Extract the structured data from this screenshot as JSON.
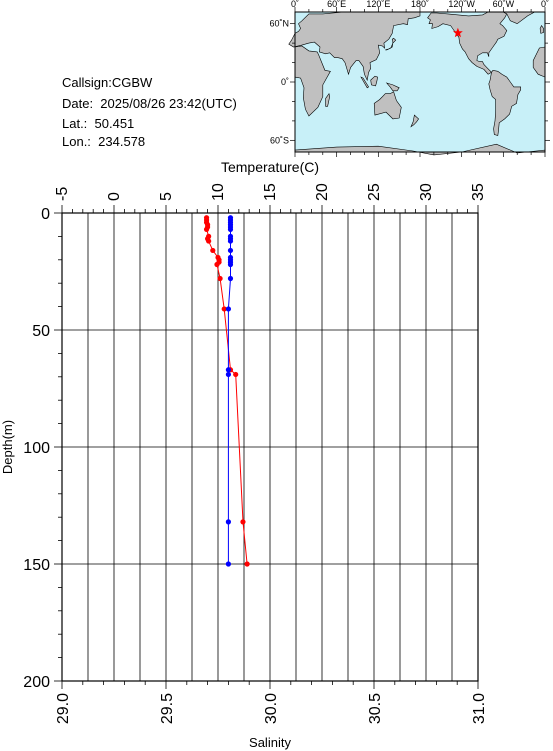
{
  "header": {
    "callsign": "Callsign:CGBW",
    "date": "Date:  2025/08/26 23:42(UTC)",
    "lat": "Lat.:  50.451",
    "lon": "Lon.:  234.578"
  },
  "map": {
    "top_labels": [
      "0˚",
      "60˚E",
      "120˚E",
      "180˚",
      "120˚W",
      "60˚W",
      "0˚"
    ],
    "left_labels": [
      "60˚N",
      "0˚",
      "60˚S"
    ],
    "station_lat": 50.451,
    "station_lon": 234.578,
    "colors": {
      "ocean": "#c8f0f8",
      "land": "#c0c0c0",
      "marker": "#ff0000"
    }
  },
  "chart_data": {
    "type": "line",
    "top_axis": {
      "label": "Temperature(C)",
      "range": [
        -5,
        35
      ],
      "ticks": [
        "-5",
        "0",
        "5",
        "10",
        "15",
        "20",
        "25",
        "30",
        "35"
      ]
    },
    "bottom_axis": {
      "label": "Salinity",
      "range": [
        29.0,
        31.0
      ],
      "ticks": [
        "29.0",
        "29.5",
        "30.0",
        "30.5",
        "31.0"
      ]
    },
    "left_axis": {
      "label": "Depth(m)",
      "range": [
        0,
        200
      ],
      "ticks": [
        "0",
        "50",
        "100",
        "150",
        "200"
      ]
    },
    "grid": true,
    "series": [
      {
        "axis": "temperature",
        "color": "#ff0000",
        "points": [
          [
            8.9,
            2
          ],
          [
            8.9,
            3
          ],
          [
            8.9,
            4
          ],
          [
            9.0,
            5
          ],
          [
            9.0,
            6
          ],
          [
            8.9,
            7
          ],
          [
            9.1,
            10
          ],
          [
            9.0,
            11
          ],
          [
            9.1,
            12
          ],
          [
            9.5,
            16
          ],
          [
            10.0,
            19
          ],
          [
            10.1,
            20
          ],
          [
            10.1,
            21
          ],
          [
            9.9,
            22
          ],
          [
            10.2,
            28
          ],
          [
            10.6,
            41
          ],
          [
            11.2,
            67
          ],
          [
            11.7,
            69
          ],
          [
            12.4,
            132
          ],
          [
            12.8,
            150
          ]
        ]
      },
      {
        "axis": "salinity",
        "color": "#0000ff",
        "points": [
          [
            29.81,
            2
          ],
          [
            29.81,
            3
          ],
          [
            29.81,
            4
          ],
          [
            29.81,
            5
          ],
          [
            29.81,
            6
          ],
          [
            29.81,
            7
          ],
          [
            29.81,
            10
          ],
          [
            29.81,
            11
          ],
          [
            29.81,
            12
          ],
          [
            29.81,
            16
          ],
          [
            29.81,
            19
          ],
          [
            29.81,
            20
          ],
          [
            29.81,
            21
          ],
          [
            29.81,
            22
          ],
          [
            29.81,
            28
          ],
          [
            29.8,
            41
          ],
          [
            29.8,
            67
          ],
          [
            29.8,
            69
          ],
          [
            29.8,
            132
          ],
          [
            29.8,
            150
          ]
        ]
      }
    ]
  }
}
